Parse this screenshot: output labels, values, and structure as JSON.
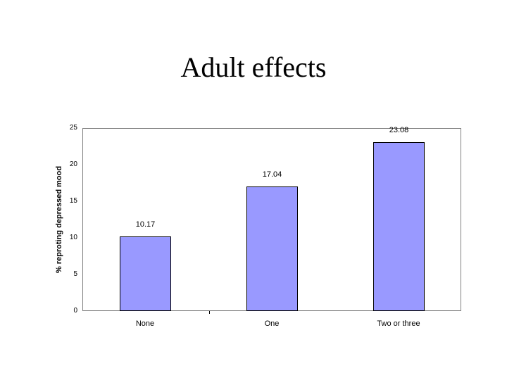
{
  "slide": {
    "title": "Adult effects"
  },
  "chart": {
    "ylabel": "% reproting depressed mood",
    "yticks": [
      "0",
      "5",
      "10",
      "15",
      "20",
      "25"
    ],
    "categories": [
      "None",
      "One",
      "Two or three"
    ],
    "bar_labels": [
      "10.17",
      "17.04",
      "23.08"
    ],
    "bar_color": "#9999FF"
  },
  "chart_data": {
    "type": "bar",
    "title": "Adult effects",
    "categories": [
      "None",
      "One",
      "Two or three"
    ],
    "values": [
      10.17,
      17.04,
      23.08
    ],
    "xlabel": "",
    "ylabel": "% reproting depressed mood",
    "ylim": [
      0,
      25
    ],
    "yticks": [
      0,
      5,
      10,
      15,
      20,
      25
    ],
    "data_labels": true,
    "grid": false,
    "legend": null
  }
}
